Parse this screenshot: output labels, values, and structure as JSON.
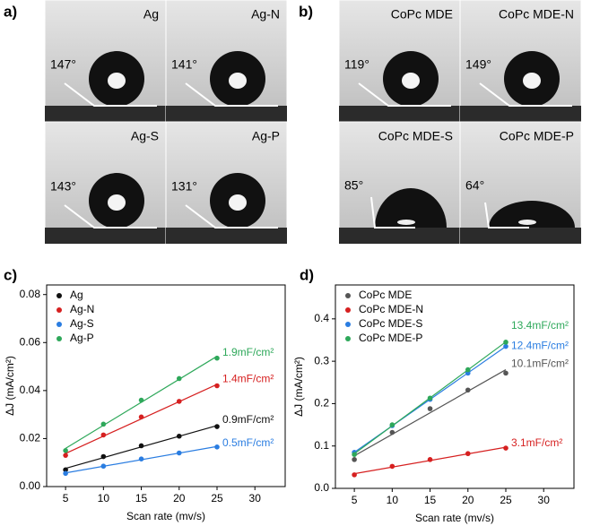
{
  "photo_panels": [
    {
      "label": "a)",
      "images": [
        {
          "name": "Ag",
          "angle": "147°"
        },
        {
          "name": "Ag-N",
          "angle": "141°"
        },
        {
          "name": "Ag-S",
          "angle": "143°"
        },
        {
          "name": "Ag-P",
          "angle": "131°"
        }
      ]
    },
    {
      "label": "b)",
      "images": [
        {
          "name": "CoPc MDE",
          "angle": "119°"
        },
        {
          "name": "CoPc MDE-N",
          "angle": "149°"
        },
        {
          "name": "CoPc MDE-S",
          "angle": "85°"
        },
        {
          "name": "CoPc MDE-P",
          "angle": "64°"
        }
      ]
    }
  ],
  "chart_data": [
    {
      "type": "scatter",
      "panel_label": "c)",
      "x_label": "Scan rate (mv/s)",
      "y_label": "ΔJ (mA/cm²)",
      "x": [
        5,
        10,
        15,
        20,
        25
      ],
      "xlim": [
        2.5,
        34
      ],
      "xticks": [
        5,
        10,
        15,
        20,
        25,
        30
      ],
      "ylim": [
        0,
        0.084
      ],
      "yticks": [
        {
          "value": 0,
          "label": "0.00"
        },
        {
          "value": 0.02,
          "label": "0.02"
        },
        {
          "value": 0.04,
          "label": "0.04"
        },
        {
          "value": 0.06,
          "label": "0.06"
        },
        {
          "value": 0.08,
          "label": "0.08"
        }
      ],
      "legend": "upper left",
      "fit_lines": true,
      "series": [
        {
          "name": "Ag",
          "color": "#111111",
          "values": [
            0.007,
            0.0125,
            0.017,
            0.021,
            0.025
          ],
          "annotation": "0.9mF/cm²"
        },
        {
          "name": "Ag-N",
          "color": "#d62020",
          "values": [
            0.013,
            0.0215,
            0.029,
            0.0355,
            0.042
          ],
          "annotation": "1.4mF/cm²"
        },
        {
          "name": "Ag-S",
          "color": "#2a7de1",
          "values": [
            0.0055,
            0.0085,
            0.0115,
            0.014,
            0.0165
          ],
          "annotation": "0.5mF/cm²"
        },
        {
          "name": "Ag-P",
          "color": "#2ea85a",
          "values": [
            0.015,
            0.026,
            0.036,
            0.045,
            0.0535
          ],
          "annotation": "1.9mF/cm²"
        }
      ]
    },
    {
      "type": "scatter",
      "panel_label": "d)",
      "x_label": "Scan rate (mv/s)",
      "y_label": "ΔJ (mA/cm²)",
      "x": [
        5,
        10,
        15,
        20,
        25
      ],
      "xlim": [
        2.5,
        34
      ],
      "xticks": [
        5,
        10,
        15,
        20,
        25,
        30
      ],
      "ylim": [
        0,
        0.48
      ],
      "yticks": [
        {
          "value": 0,
          "label": "0.0"
        },
        {
          "value": 0.1,
          "label": "0.1"
        },
        {
          "value": 0.2,
          "label": "0.2"
        },
        {
          "value": 0.3,
          "label": "0.3"
        },
        {
          "value": 0.4,
          "label": "0.4"
        }
      ],
      "legend": "upper left",
      "fit_lines": true,
      "series": [
        {
          "name": "CoPc MDE",
          "color": "#555555",
          "values": [
            0.068,
            0.132,
            0.188,
            0.232,
            0.272
          ],
          "annotation": "10.1mF/cm²"
        },
        {
          "name": "CoPc MDE-N",
          "color": "#d62020",
          "values": [
            0.032,
            0.052,
            0.068,
            0.082,
            0.095
          ],
          "annotation": "3.1mF/cm²"
        },
        {
          "name": "CoPc MDE-S",
          "color": "#2a7de1",
          "values": [
            0.085,
            0.148,
            0.21,
            0.272,
            0.335
          ],
          "annotation": "12.4mF/cm²"
        },
        {
          "name": "CoPc MDE-P",
          "color": "#2ea85a",
          "values": [
            0.08,
            0.15,
            0.213,
            0.28,
            0.345
          ],
          "annotation": "13.4mF/cm²"
        }
      ]
    }
  ]
}
